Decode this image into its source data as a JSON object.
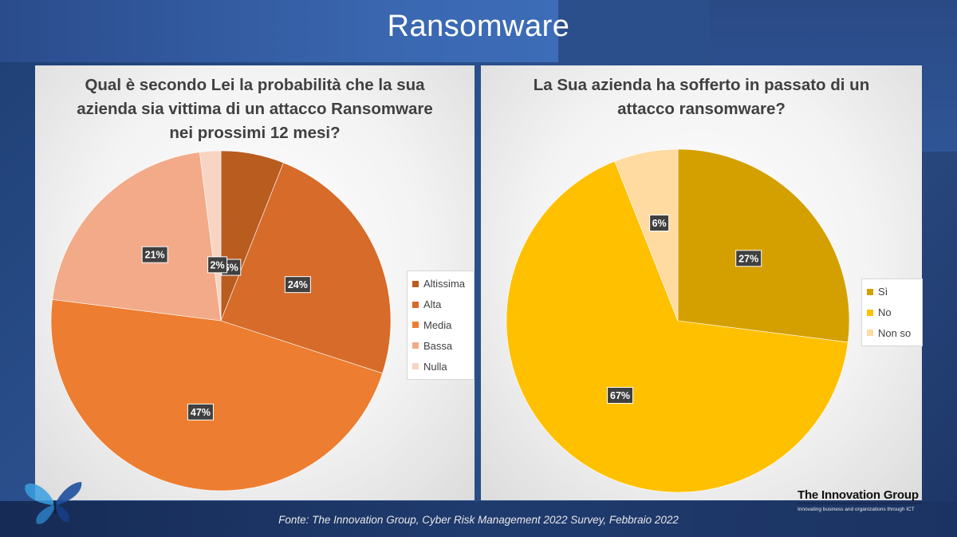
{
  "slide_title": "Ransomware",
  "footer_source": "Fonte: The Innovation Group, Cyber Risk Management 2022 Survey, Febbraio 2022",
  "logo": {
    "title": "The Innovation Group",
    "tagline": "Innovating business and organizations through ICT"
  },
  "icons": {
    "butterfly": "butterfly-logo-icon"
  },
  "chart_data": [
    {
      "type": "pie",
      "title": "Qual è secondo Lei la probabilità che la sua azienda sia vittima di un attacco Ransomware nei prossimi 12 mesi?",
      "categories": [
        "Altissima",
        "Alta",
        "Media",
        "Bassa",
        "Nulla"
      ],
      "values": [
        6,
        24,
        47,
        21,
        2
      ],
      "data_labels": [
        "6%",
        "24%",
        "47%",
        "21%",
        "2%"
      ],
      "colors": [
        "#b95c20",
        "#d66b2a",
        "#ed7d31",
        "#f2aa88",
        "#f8d4c3"
      ],
      "legend_position": "right"
    },
    {
      "type": "pie",
      "title": "La Sua azienda ha sofferto in passato di un attacco ransomware?",
      "categories": [
        "Sì",
        "No",
        "Non so"
      ],
      "values": [
        27,
        67,
        6
      ],
      "data_labels": [
        "27%",
        "67%",
        "6%"
      ],
      "colors": [
        "#d4a000",
        "#ffc000",
        "#ffdba1"
      ],
      "legend_position": "right"
    }
  ]
}
